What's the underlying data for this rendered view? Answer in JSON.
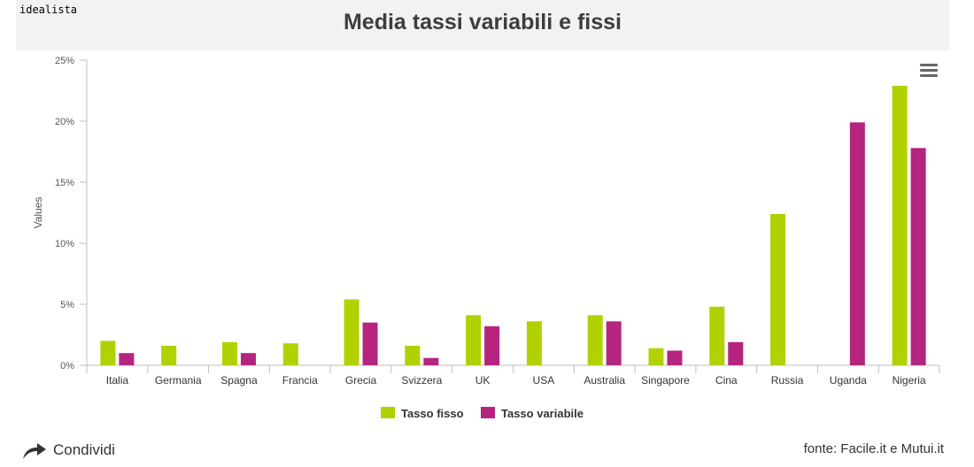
{
  "header": {
    "logo": "idealista",
    "title": "Media tassi variabili e fissi"
  },
  "menu": {
    "icon": "hamburger-menu-icon"
  },
  "footer": {
    "share_label": "Condividi",
    "share_icon": "share-arrow-icon",
    "source": "fonte: Facile.it e Mutui.it"
  },
  "chart_data": {
    "type": "bar",
    "title": "Media tassi variabili e fissi",
    "ylabel": "Values",
    "xlabel": "",
    "ylim": [
      0,
      25
    ],
    "yticks": [
      0,
      5,
      10,
      15,
      20,
      25
    ],
    "ytick_labels": [
      "0%",
      "5%",
      "10%",
      "15%",
      "20%",
      "25%"
    ],
    "categories": [
      "Italia",
      "Germania",
      "Spagna",
      "Francia",
      "Grecia",
      "Svizzera",
      "UK",
      "USA",
      "Australia",
      "Singapore",
      "Cina",
      "Russia",
      "Uganda",
      "Nigeria"
    ],
    "series": [
      {
        "name": "Tasso fisso",
        "color": "#b2d100",
        "values": [
          2.0,
          1.6,
          1.9,
          1.8,
          5.4,
          1.6,
          4.1,
          3.6,
          4.1,
          1.4,
          4.8,
          12.4,
          null,
          22.9
        ]
      },
      {
        "name": "Tasso variabile",
        "color": "#b5247f",
        "values": [
          1.0,
          null,
          1.0,
          null,
          3.5,
          0.6,
          3.2,
          null,
          3.6,
          1.2,
          1.9,
          null,
          19.9,
          17.8
        ]
      }
    ],
    "legend_position": "bottom-center",
    "grid": false
  }
}
